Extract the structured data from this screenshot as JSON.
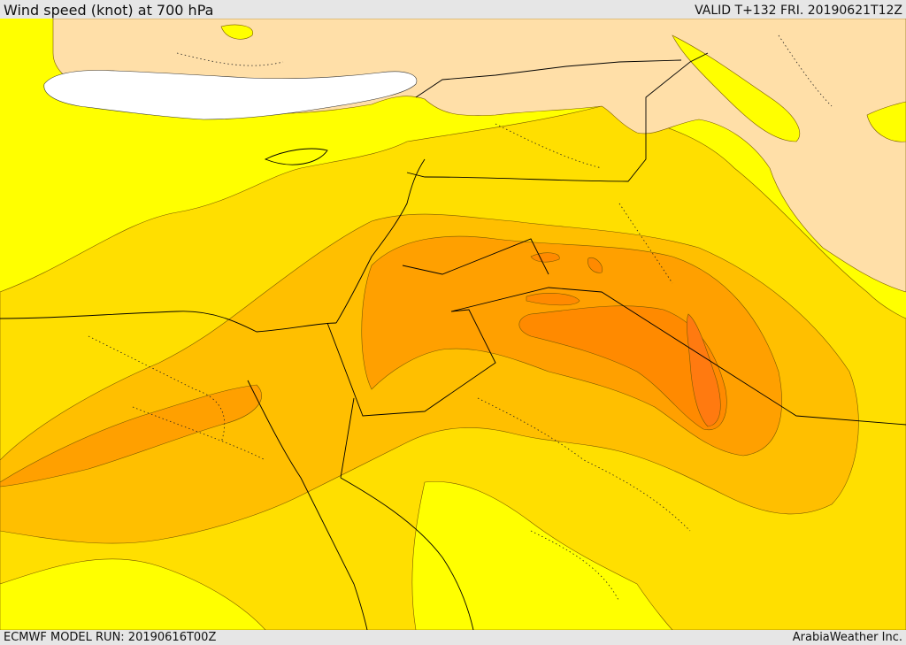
{
  "header": {
    "title": "Wind speed (knot) at 700 hPa",
    "valid": "VALID T+132 FRI. 20190621T12Z"
  },
  "footer": {
    "model_run": "ECMWF MODEL RUN: 20190616T00Z",
    "credit": "ArabiaWeather Inc."
  },
  "colors": {
    "sea_light": "#ffff00",
    "band_1": "#ffdf00",
    "band_2": "#ffbf00",
    "band_3": "#ffa000",
    "band_4": "#ff8a00",
    "band_5": "#ff7a10",
    "terrain_masked": "#ffdfa8",
    "no_data": "#ffffff"
  }
}
